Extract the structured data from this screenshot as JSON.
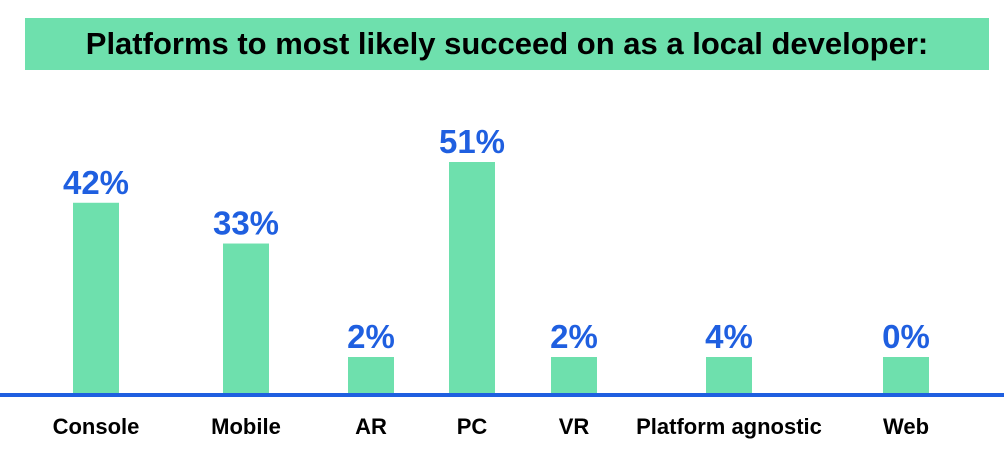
{
  "colors": {
    "bar": "#6ee0ad",
    "title_background": "#6ee0ad",
    "value_label": "#1f5fe0",
    "axis_line": "#1f5fe0",
    "category_label": "#000000"
  },
  "chart_data": {
    "type": "bar",
    "title": "Platforms to most likely succeed on as a local developer:",
    "categories": [
      "Console",
      "Mobile",
      "AR",
      "PC",
      "VR",
      "Platform agnostic",
      "Web"
    ],
    "values": [
      42,
      33,
      2,
      51,
      2,
      4,
      0
    ],
    "data_labels": [
      "42%",
      "33%",
      "2%",
      "51%",
      "2%",
      "4%",
      "0%"
    ],
    "ylim": [
      0,
      51
    ],
    "grid": false,
    "legend": "none",
    "xlabel": "",
    "ylabel": ""
  }
}
